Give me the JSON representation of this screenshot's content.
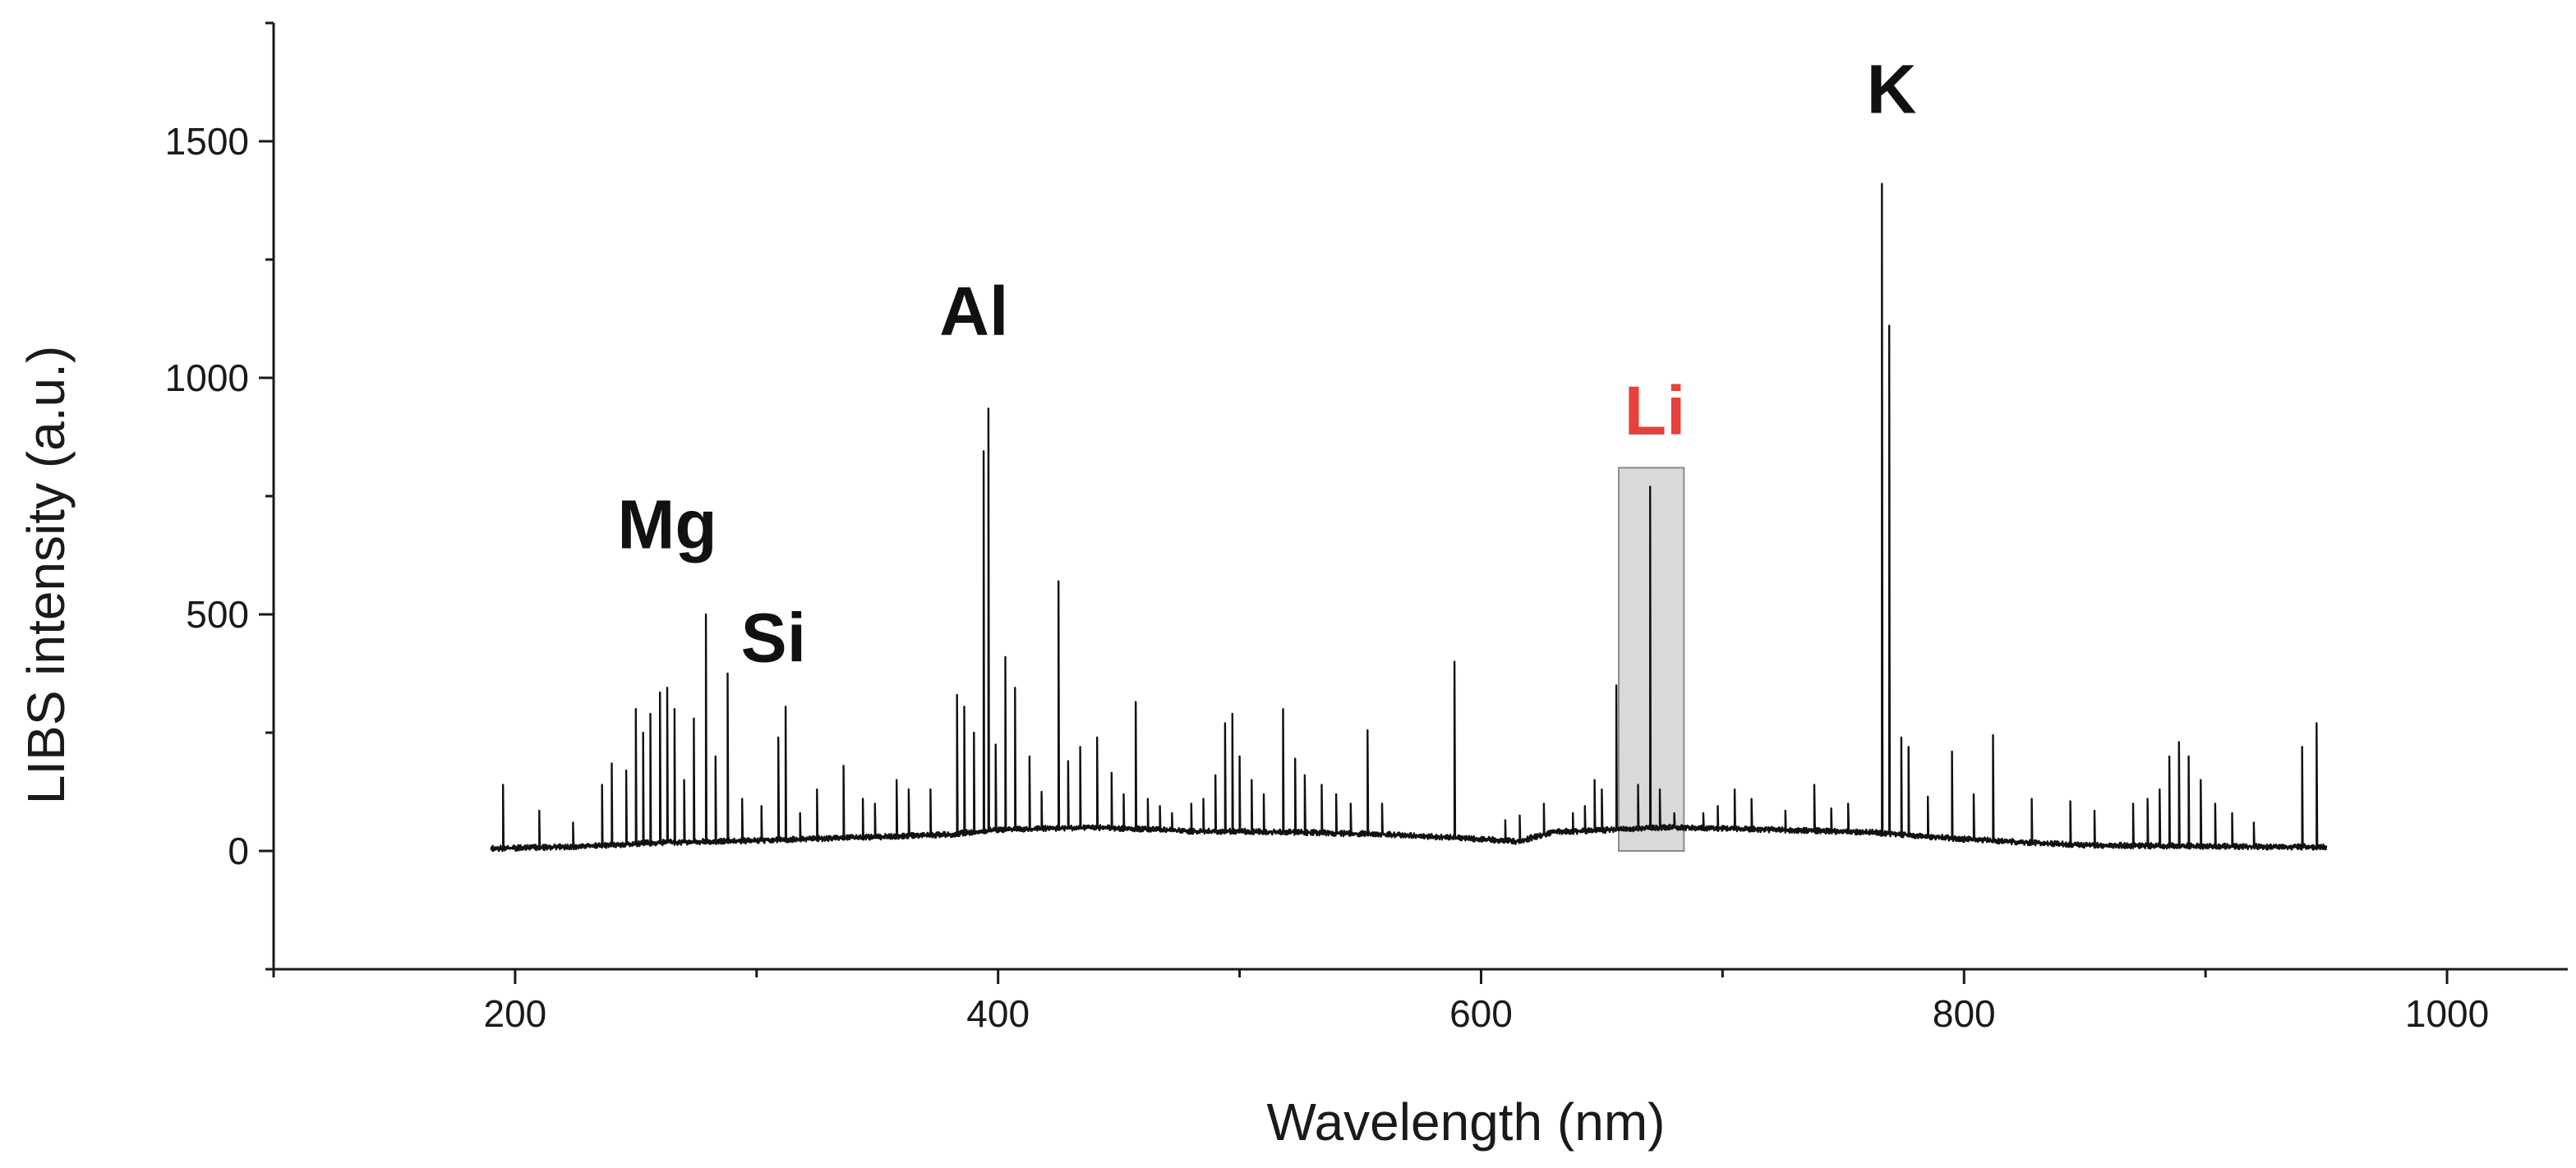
{
  "chart_data": {
    "type": "line",
    "title": "",
    "xlabel": "Wavelength (nm)",
    "ylabel": "LIBS intensity (a.u.)",
    "xlim": [
      100,
      1050
    ],
    "ylim": [
      -250,
      1750
    ],
    "x_ticks": [
      200,
      400,
      600,
      800,
      1000
    ],
    "x_tick_labels": [
      "200",
      "400",
      "600",
      "800",
      "1000"
    ],
    "y_ticks": [
      0,
      500,
      1000,
      1500
    ],
    "y_tick_labels": [
      "0",
      "500",
      "1000",
      "1500"
    ],
    "grid": false,
    "colors": {
      "line": "#111111",
      "peak_label": "#111111",
      "highlight_label": "#e8403a",
      "highlight_fill": "#d9d9d9",
      "highlight_stroke": "#8c8c8c"
    },
    "series": [
      {
        "name": "LIBS spectrum",
        "baseline": [
          [
            190,
            5
          ],
          [
            230,
            10
          ],
          [
            260,
            18
          ],
          [
            300,
            22
          ],
          [
            340,
            28
          ],
          [
            380,
            35
          ],
          [
            400,
            45
          ],
          [
            440,
            50
          ],
          [
            480,
            42
          ],
          [
            520,
            40
          ],
          [
            560,
            35
          ],
          [
            600,
            25
          ],
          [
            615,
            20
          ],
          [
            630,
            40
          ],
          [
            680,
            50
          ],
          [
            720,
            45
          ],
          [
            760,
            40
          ],
          [
            800,
            25
          ],
          [
            850,
            12
          ],
          [
            900,
            10
          ],
          [
            950,
            8
          ]
        ],
        "peaks": [
          [
            195,
            140
          ],
          [
            210,
            85
          ],
          [
            224,
            60
          ],
          [
            236,
            140
          ],
          [
            240,
            185
          ],
          [
            246,
            170
          ],
          [
            250,
            300
          ],
          [
            253,
            250
          ],
          [
            256,
            290
          ],
          [
            260,
            335
          ],
          [
            263,
            345
          ],
          [
            266,
            300
          ],
          [
            270,
            150
          ],
          [
            274,
            280
          ],
          [
            279,
            500
          ],
          [
            283,
            200
          ],
          [
            288,
            375
          ],
          [
            294,
            110
          ],
          [
            302,
            95
          ],
          [
            309,
            240
          ],
          [
            312,
            305
          ],
          [
            318,
            80
          ],
          [
            325,
            130
          ],
          [
            336,
            180
          ],
          [
            344,
            110
          ],
          [
            349,
            100
          ],
          [
            358,
            150
          ],
          [
            363,
            130
          ],
          [
            372,
            130
          ],
          [
            383,
            330
          ],
          [
            386,
            305
          ],
          [
            390,
            250
          ],
          [
            394,
            845
          ],
          [
            396,
            935
          ],
          [
            399,
            225
          ],
          [
            403,
            410
          ],
          [
            407,
            345
          ],
          [
            413,
            200
          ],
          [
            418,
            125
          ],
          [
            425,
            570
          ],
          [
            429,
            190
          ],
          [
            434,
            220
          ],
          [
            441,
            240
          ],
          [
            447,
            165
          ],
          [
            452,
            120
          ],
          [
            457,
            315
          ],
          [
            462,
            110
          ],
          [
            467,
            95
          ],
          [
            472,
            80
          ],
          [
            480,
            100
          ],
          [
            485,
            110
          ],
          [
            490,
            160
          ],
          [
            494,
            270
          ],
          [
            497,
            290
          ],
          [
            500,
            200
          ],
          [
            505,
            150
          ],
          [
            510,
            120
          ],
          [
            518,
            300
          ],
          [
            523,
            195
          ],
          [
            527,
            160
          ],
          [
            534,
            140
          ],
          [
            540,
            120
          ],
          [
            546,
            100
          ],
          [
            553,
            255
          ],
          [
            559,
            100
          ],
          [
            589,
            400
          ],
          [
            610,
            65
          ],
          [
            616,
            75
          ],
          [
            626,
            100
          ],
          [
            638,
            80
          ],
          [
            643,
            95
          ],
          [
            647,
            150
          ],
          [
            650,
            130
          ],
          [
            656,
            350
          ],
          [
            665,
            140
          ],
          [
            670,
            770
          ],
          [
            674,
            130
          ],
          [
            680,
            80
          ],
          [
            692,
            80
          ],
          [
            698,
            95
          ],
          [
            705,
            130
          ],
          [
            712,
            110
          ],
          [
            726,
            85
          ],
          [
            738,
            140
          ],
          [
            745,
            90
          ],
          [
            752,
            100
          ],
          [
            766,
            1410
          ],
          [
            769,
            1110
          ],
          [
            774,
            240
          ],
          [
            777,
            220
          ],
          [
            785,
            115
          ],
          [
            795,
            210
          ],
          [
            804,
            120
          ],
          [
            812,
            245
          ],
          [
            828,
            110
          ],
          [
            844,
            105
          ],
          [
            854,
            85
          ],
          [
            870,
            100
          ],
          [
            876,
            110
          ],
          [
            881,
            130
          ],
          [
            885,
            200
          ],
          [
            889,
            230
          ],
          [
            893,
            200
          ],
          [
            898,
            150
          ],
          [
            904,
            100
          ],
          [
            911,
            80
          ],
          [
            920,
            60
          ],
          [
            940,
            220
          ],
          [
            946,
            270
          ]
        ]
      }
    ],
    "annotations": [
      {
        "text": "Mg",
        "x": 263,
        "y": 640,
        "highlight": false
      },
      {
        "text": "Si",
        "x": 307,
        "y": 400,
        "highlight": false
      },
      {
        "text": "Al",
        "x": 390,
        "y": 1090,
        "highlight": false
      },
      {
        "text": "Li",
        "x": 672,
        "y": 880,
        "highlight": true
      },
      {
        "text": "K",
        "x": 770,
        "y": 1560,
        "highlight": false
      }
    ],
    "highlight_region": {
      "x_range": [
        657,
        684
      ],
      "y_range": [
        0,
        810
      ],
      "label": "Li"
    }
  }
}
